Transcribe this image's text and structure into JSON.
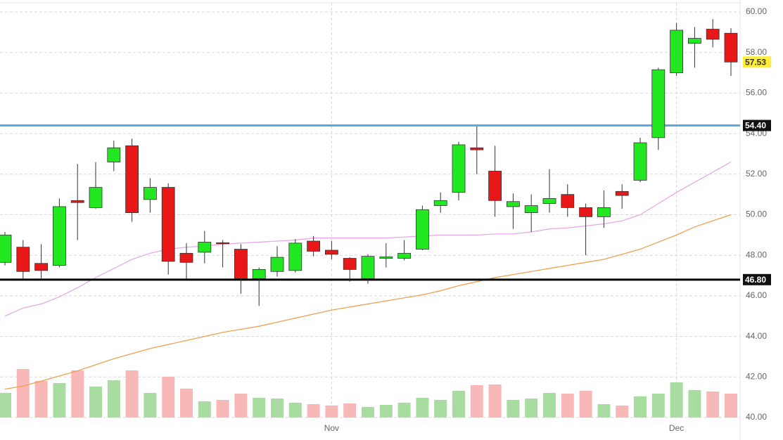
{
  "chart_data": {
    "type": "candlestick",
    "x": [
      null,
      null,
      null,
      null,
      null,
      null,
      null,
      null,
      null,
      null,
      null,
      null,
      null,
      null,
      null,
      null,
      null,
      null,
      "Nov",
      null,
      null,
      null,
      null,
      null,
      null,
      null,
      null,
      null,
      null,
      null,
      null,
      null,
      null,
      null,
      null,
      null,
      null,
      "Dec",
      null,
      null,
      null
    ],
    "open": [
      47.65,
      48.4,
      47.6,
      47.5,
      50.7,
      50.35,
      52.6,
      53.4,
      50.75,
      51.35,
      48.1,
      48.15,
      48.62,
      48.3,
      46.85,
      47.2,
      47.25,
      48.7,
      48.25,
      47.85,
      46.85,
      47.85,
      47.85,
      48.3,
      50.45,
      51.1,
      53.3,
      52.15,
      50.4,
      50.1,
      50.55,
      51.0,
      50.35,
      49.9,
      51.15,
      51.7,
      53.8,
      57.0,
      58.45,
      59.15,
      58.95
    ],
    "high": [
      49.15,
      48.75,
      48.55,
      50.8,
      52.5,
      52.6,
      53.65,
      53.75,
      51.8,
      51.55,
      48.6,
      49.2,
      48.75,
      48.55,
      47.4,
      48.45,
      48.8,
      48.95,
      48.7,
      47.9,
      48.05,
      48.6,
      48.75,
      50.45,
      51.1,
      53.6,
      54.35,
      53.4,
      51.05,
      51.0,
      52.25,
      51.5,
      50.55,
      51.2,
      51.5,
      53.8,
      57.25,
      59.45,
      59.25,
      59.65,
      59.2
    ],
    "low": [
      47.5,
      46.85,
      46.85,
      47.4,
      48.75,
      50.3,
      52.15,
      49.65,
      50.1,
      47.05,
      46.85,
      47.6,
      47.4,
      46.1,
      45.5,
      46.95,
      47.15,
      47.95,
      47.8,
      46.7,
      46.6,
      47.4,
      47.75,
      48.25,
      50.1,
      50.7,
      52.0,
      49.9,
      49.3,
      49.15,
      50.1,
      49.9,
      48.0,
      49.35,
      50.3,
      51.6,
      53.2,
      56.85,
      57.25,
      58.25,
      56.85
    ],
    "close": [
      49.0,
      47.2,
      47.25,
      50.4,
      50.6,
      51.35,
      53.3,
      50.1,
      51.35,
      47.7,
      47.65,
      48.65,
      48.6,
      46.85,
      47.3,
      47.9,
      48.6,
      48.2,
      48.05,
      47.3,
      47.95,
      47.92,
      48.1,
      50.25,
      50.7,
      53.45,
      53.2,
      50.7,
      50.65,
      50.45,
      50.8,
      50.35,
      49.9,
      50.35,
      50.95,
      53.55,
      57.15,
      59.1,
      58.7,
      58.65,
      57.53
    ],
    "volume": [
      35,
      69,
      52,
      49,
      67,
      44,
      53,
      67,
      35,
      58,
      41,
      23,
      25,
      34,
      28,
      27,
      21,
      19,
      17,
      20,
      15,
      18,
      21,
      28,
      25,
      38,
      46,
      47,
      25,
      27,
      35,
      34,
      38,
      19,
      17,
      30,
      34,
      50,
      39,
      37,
      34
    ],
    "up_color": "#22e822",
    "down_color": "#e81818",
    "up_volume_color": "#a8dca0",
    "down_volume_color": "#f8b8b8",
    "ma_lines": [
      {
        "color": "#e8a8e8",
        "values": [
          45.0,
          45.4,
          45.6,
          45.95,
          46.4,
          46.9,
          47.35,
          47.8,
          48.1,
          48.3,
          48.4,
          48.45,
          48.55,
          48.6,
          48.65,
          48.7,
          48.75,
          48.85,
          48.85,
          48.85,
          48.85,
          48.85,
          48.9,
          48.95,
          49.0,
          49.0,
          49.0,
          49.05,
          49.05,
          49.15,
          49.3,
          49.35,
          49.45,
          49.55,
          49.7,
          50.0,
          50.55,
          51.1,
          51.6,
          52.1,
          52.6
        ]
      },
      {
        "color": "#f0a050",
        "values": [
          41.4,
          41.55,
          41.8,
          42.05,
          42.3,
          42.6,
          42.9,
          43.15,
          43.4,
          43.6,
          43.8,
          44.0,
          44.2,
          44.35,
          44.5,
          44.7,
          44.9,
          45.1,
          45.3,
          45.45,
          45.6,
          45.75,
          45.9,
          46.05,
          46.25,
          46.5,
          46.7,
          46.9,
          47.05,
          47.2,
          47.35,
          47.5,
          47.65,
          47.8,
          48.05,
          48.3,
          48.65,
          49.0,
          49.4,
          49.7,
          50.0
        ]
      }
    ],
    "levels": [
      {
        "value": 54.4,
        "label": "54.40",
        "color": "#5aa9e6"
      },
      {
        "value": 46.8,
        "label": "46.80",
        "color": "#000000"
      }
    ],
    "last_price": {
      "value": 57.53,
      "label": "57.53",
      "color": "#ffee33"
    },
    "ylim": [
      40,
      60
    ],
    "yticks": [
      {
        "value": 40,
        "label": "40.00"
      },
      {
        "value": 42,
        "label": "42.00"
      },
      {
        "value": 44,
        "label": "44.00"
      },
      {
        "value": 46,
        "label": "46.00"
      },
      {
        "value": 48,
        "label": "48.00"
      },
      {
        "value": 50,
        "label": "50.00"
      },
      {
        "value": 52,
        "label": "52.00"
      },
      {
        "value": 54,
        "label": "54.00"
      },
      {
        "value": 56,
        "label": "56.00"
      },
      {
        "value": 58,
        "label": "58.00"
      },
      {
        "value": 60,
        "label": "60.00"
      }
    ],
    "grid": true
  }
}
